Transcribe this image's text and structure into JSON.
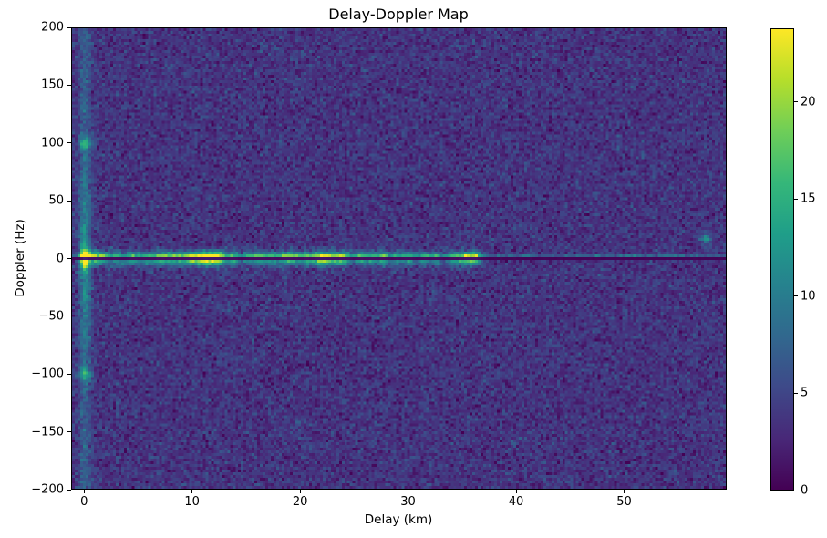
{
  "chart_data": {
    "type": "heatmap",
    "title": "Delay-Doppler Map",
    "xlabel": "Delay (km)",
    "ylabel": "Doppler (Hz)",
    "xlim": [
      -1.2,
      59.5
    ],
    "ylim": [
      -200,
      200
    ],
    "xticks": [
      0,
      10,
      20,
      30,
      40,
      50
    ],
    "yticks": [
      200,
      150,
      100,
      50,
      0,
      -50,
      -100,
      -150,
      -200
    ],
    "grid": false,
    "legend_position": "none",
    "colorbar": {
      "ticks": [
        0,
        5,
        10,
        15,
        20
      ],
      "vmin": 0,
      "vmax": 23.8
    },
    "colormap": {
      "name": "viridis",
      "stops": [
        "#440154",
        "#482878",
        "#3e4989",
        "#31688e",
        "#26828e",
        "#1f9e89",
        "#35b779",
        "#6ece58",
        "#b5de2b",
        "#fde725"
      ]
    },
    "noise_floor": {
      "mean": 3.6,
      "std": 1.3
    },
    "features": {
      "main_peak": {
        "delay_km": 0,
        "doppler_hz": 0,
        "intensity": 20,
        "delay_sigma_km": 0.3,
        "doppler_sigma_hz": 5.5
      },
      "zero_delay_stripe": {
        "delay_km": 0,
        "delay_sigma_km": 0.4,
        "base_intensity": 3.5,
        "center_boost": 4.5,
        "boost_sigma_hz": 55
      },
      "doppler_ambiguity_dots": [
        {
          "delay_km": 0,
          "doppler_hz": 100,
          "intensity": 8
        },
        {
          "delay_km": 0,
          "doppler_hz": -100,
          "intensity": 8
        }
      ],
      "zero_doppler_notch": {
        "doppler_hz": 0,
        "half_width_hz": 1.3,
        "attenuation": 0.06
      },
      "clutter_line": {
        "doppler_hz": 2.5,
        "intensity": 4,
        "sigma_hz": 1.1
      },
      "clutter_ridge": {
        "doppler_sigma_hz": 4,
        "blobs": [
          [
            0.9,
            13,
            0.4
          ],
          [
            1.7,
            11,
            0.4
          ],
          [
            2.9,
            10,
            0.4
          ],
          [
            4.3,
            12,
            0.5
          ],
          [
            5.6,
            9,
            0.4
          ],
          [
            6.6,
            10,
            0.4
          ],
          [
            7.6,
            12,
            0.5
          ],
          [
            8.6,
            10,
            0.4
          ],
          [
            9.7,
            15,
            0.5
          ],
          [
            10.8,
            14,
            0.5
          ],
          [
            11.6,
            16,
            0.5
          ],
          [
            12.5,
            16,
            0.5
          ],
          [
            13.8,
            11,
            0.4
          ],
          [
            15.2,
            9,
            0.4
          ],
          [
            16.2,
            11,
            0.4
          ],
          [
            17.3,
            10,
            0.4
          ],
          [
            18.6,
            13,
            0.5
          ],
          [
            19.6,
            10,
            0.4
          ],
          [
            20.6,
            12,
            0.4
          ],
          [
            21.6,
            11,
            0.4
          ],
          [
            22.3,
            14,
            0.5
          ],
          [
            23.4,
            14,
            0.5
          ],
          [
            24.3,
            10,
            0.4
          ],
          [
            25.6,
            12,
            0.4
          ],
          [
            26.6,
            10,
            0.4
          ],
          [
            27.7,
            13,
            0.4
          ],
          [
            29.0,
            9,
            0.4
          ],
          [
            30.1,
            11,
            0.4
          ],
          [
            31.4,
            9,
            0.4
          ],
          [
            32.6,
            9,
            0.4
          ],
          [
            34.0,
            8,
            0.4
          ],
          [
            35.3,
            15,
            0.6
          ],
          [
            36.3,
            12,
            0.4
          ]
        ]
      },
      "isolated_specks": [
        {
          "delay_km": 57.7,
          "doppler_hz": 17,
          "intensity": 9
        }
      ]
    }
  },
  "seed": 42
}
